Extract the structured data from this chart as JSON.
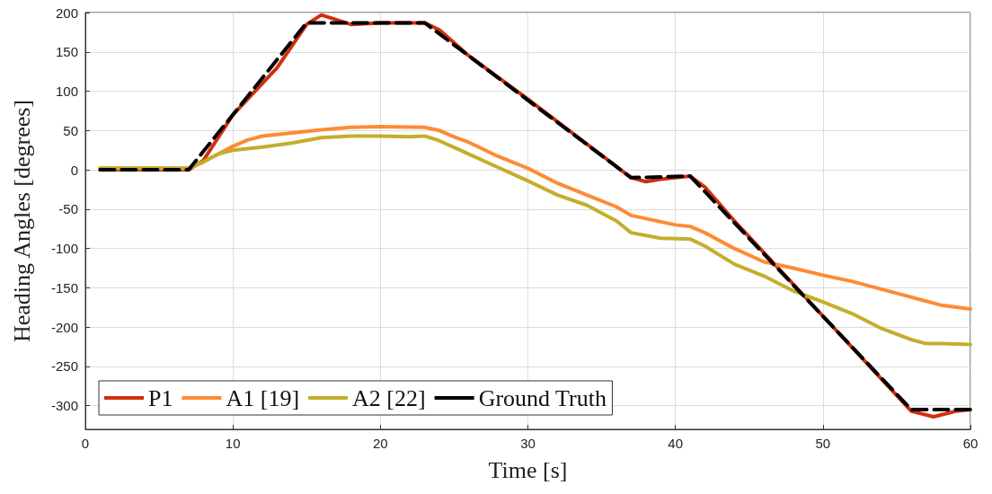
{
  "chart_data": {
    "type": "line",
    "xlabel": "Time [s]",
    "ylabel": "Heading Angles [degrees]",
    "xlim": [
      0,
      60
    ],
    "xticks": [
      0,
      10,
      20,
      30,
      40,
      50,
      60
    ],
    "ylim": [
      -330,
      200
    ],
    "yticks": [
      -300,
      -250,
      -200,
      -150,
      -100,
      -50,
      0,
      50,
      100,
      150,
      200
    ],
    "grid": true,
    "legend": "bottom left",
    "marker": "none",
    "series": [
      {
        "name": "P1",
        "color": "#d12f0c",
        "line_style": "solid",
        "x": [
          1,
          7,
          8,
          10,
          13,
          15,
          16,
          18,
          20,
          23,
          24,
          26,
          30,
          37,
          38,
          39,
          41,
          42,
          44,
          56,
          57.5,
          59,
          60
        ],
        "values": [
          0,
          0,
          12,
          70,
          130,
          185,
          197,
          185,
          187,
          187,
          178,
          145,
          90,
          -10,
          -15,
          -12,
          -8,
          -22,
          -65,
          -307,
          -314,
          -307,
          -305
        ]
      },
      {
        "name": "A1 [19]",
        "color": "#fd8b35",
        "line_style": "solid",
        "x": [
          1,
          7,
          8,
          10,
          11,
          12,
          14,
          16,
          18,
          20,
          23,
          24,
          25,
          26,
          28,
          30,
          32,
          34,
          36,
          37,
          40,
          41,
          42,
          44,
          46,
          48,
          50,
          52,
          54,
          56,
          58,
          60
        ],
        "values": [
          2,
          2,
          10,
          30,
          38,
          43,
          47,
          51,
          54,
          55,
          54,
          50,
          42,
          35,
          17,
          2,
          -17,
          -32,
          -47,
          -58,
          -70,
          -72,
          -80,
          -100,
          -117,
          -125,
          -134,
          -142,
          -152,
          -162,
          -172,
          -177
        ]
      },
      {
        "name": "A2 [22]",
        "color": "#c3ae2d",
        "line_style": "solid",
        "x": [
          1,
          7,
          8,
          9,
          10,
          12,
          14,
          16,
          18,
          20,
          22,
          23,
          24,
          26,
          28,
          30,
          32,
          34,
          36,
          37,
          39,
          41,
          42,
          44,
          46,
          48,
          50,
          52,
          54,
          56,
          57,
          58,
          60
        ],
        "values": [
          2,
          2,
          10,
          20,
          25,
          29,
          34,
          41,
          43,
          43,
          42,
          43,
          37,
          20,
          3,
          -14,
          -32,
          -45,
          -65,
          -80,
          -87,
          -88,
          -97,
          -120,
          -135,
          -154,
          -168,
          -183,
          -202,
          -216,
          -221,
          -221,
          -222
        ]
      },
      {
        "name": "Ground Truth",
        "color": "#000000",
        "line_style": "dashed",
        "x": [
          1,
          7,
          15,
          23,
          37,
          41,
          56,
          60
        ],
        "values": [
          0,
          0,
          187,
          187,
          -10,
          -8,
          -305,
          -305
        ]
      }
    ]
  }
}
